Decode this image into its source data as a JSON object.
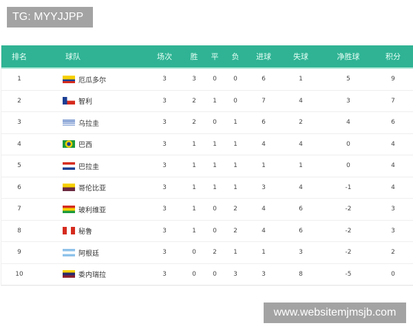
{
  "watermarks": {
    "top_left": "TG: MYYJJPP",
    "bottom_right": "www.websitemjmsjb.com"
  },
  "header": {
    "rank": "排名",
    "team": "球队",
    "played": "场次",
    "won": "胜",
    "drawn": "平",
    "lost": "负",
    "gf": "进球",
    "ga": "失球",
    "gd": "净胜球",
    "pts": "积分"
  },
  "rows": [
    {
      "rank": "1",
      "team": "厄瓜多尔",
      "flag": "ecuador-flag",
      "played": "3",
      "won": "3",
      "drawn": "0",
      "lost": "0",
      "gf": "6",
      "ga": "1",
      "gd": "5",
      "pts": "9"
    },
    {
      "rank": "2",
      "team": "智利",
      "flag": "chile-flag",
      "played": "3",
      "won": "2",
      "drawn": "1",
      "lost": "0",
      "gf": "7",
      "ga": "4",
      "gd": "3",
      "pts": "7"
    },
    {
      "rank": "3",
      "team": "乌拉圭",
      "flag": "uruguay-flag",
      "played": "3",
      "won": "2",
      "drawn": "0",
      "lost": "1",
      "gf": "6",
      "ga": "2",
      "gd": "4",
      "pts": "6"
    },
    {
      "rank": "4",
      "team": "巴西",
      "flag": "brazil-flag",
      "played": "3",
      "won": "1",
      "drawn": "1",
      "lost": "1",
      "gf": "4",
      "ga": "4",
      "gd": "0",
      "pts": "4"
    },
    {
      "rank": "5",
      "team": "巴拉圭",
      "flag": "paraguay-flag",
      "played": "3",
      "won": "1",
      "drawn": "1",
      "lost": "1",
      "gf": "1",
      "ga": "1",
      "gd": "0",
      "pts": "4"
    },
    {
      "rank": "6",
      "team": "哥伦比亚",
      "flag": "colombia-flag",
      "played": "3",
      "won": "1",
      "drawn": "1",
      "lost": "1",
      "gf": "3",
      "ga": "4",
      "gd": "-1",
      "pts": "4"
    },
    {
      "rank": "7",
      "team": "玻利维亚",
      "flag": "bolivia-flag",
      "played": "3",
      "won": "1",
      "drawn": "0",
      "lost": "2",
      "gf": "4",
      "ga": "6",
      "gd": "-2",
      "pts": "3"
    },
    {
      "rank": "8",
      "team": "秘鲁",
      "flag": "peru-flag",
      "played": "3",
      "won": "1",
      "drawn": "0",
      "lost": "2",
      "gf": "4",
      "ga": "6",
      "gd": "-2",
      "pts": "3"
    },
    {
      "rank": "9",
      "team": "阿根廷",
      "flag": "argentina-flag",
      "played": "3",
      "won": "0",
      "drawn": "2",
      "lost": "1",
      "gf": "1",
      "ga": "3",
      "gd": "-2",
      "pts": "2"
    },
    {
      "rank": "10",
      "team": "委内瑞拉",
      "flag": "venezuela-flag",
      "played": "3",
      "won": "0",
      "drawn": "0",
      "lost": "3",
      "gf": "3",
      "ga": "8",
      "gd": "-5",
      "pts": "0"
    }
  ],
  "colors": {
    "header_bg": "#2fb394"
  }
}
